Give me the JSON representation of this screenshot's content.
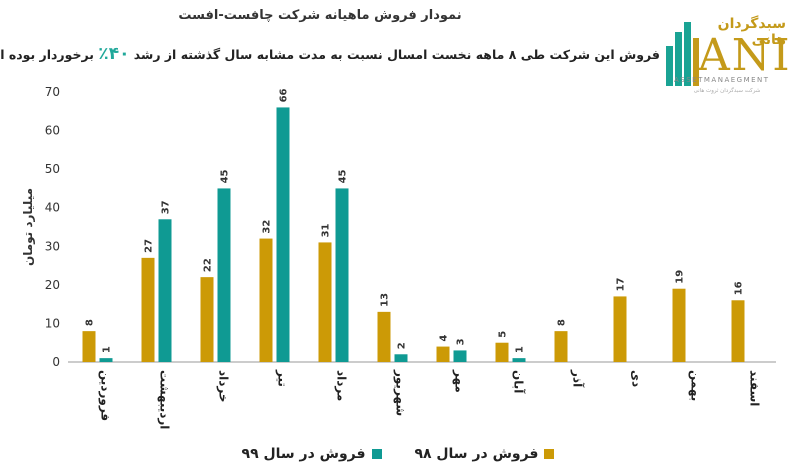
{
  "header": {
    "title": "نمودار فروش ماهیانه شرکت چافست-افست",
    "subtitle_before": "فروش این شرکت طی ۸ ماهه نخست امسال نسبت به مدت مشابه سال گذشته از رشد ",
    "subtitle_growth": "۴۰٪",
    "subtitle_after": " برخوردار بوده است."
  },
  "logo": {
    "brand_fa": "سبدگردان هانی",
    "brand_latin": "ANI",
    "subline": "ASSETMANAEGMENT",
    "tagline": "شرکت سبدگردان ثروت هانی"
  },
  "colors": {
    "series98": "#cc9a06",
    "series99": "#0f9a93"
  },
  "chart_data": {
    "type": "bar",
    "ylabel": "میلیارد تومان",
    "ylim": [
      0,
      70
    ],
    "yticks": [
      0,
      10,
      20,
      30,
      40,
      50,
      60,
      70
    ],
    "categories": [
      "فروردین",
      "اردیبهشت",
      "خرداد",
      "تیر",
      "مرداد",
      "شهریور",
      "مهر",
      "آبان",
      "آذر",
      "دی",
      "بهمن",
      "اسفند"
    ],
    "series": [
      {
        "name": "فروش در سال ۹۸",
        "values": [
          8,
          27,
          22,
          32,
          31,
          13,
          4,
          5,
          8,
          17,
          19,
          16
        ]
      },
      {
        "name": "فروش در سال ۹۹",
        "values": [
          1,
          37,
          45,
          66,
          45,
          2,
          3,
          1,
          null,
          null,
          null,
          null
        ]
      }
    ],
    "grid": false,
    "legend_position": "bottom"
  }
}
